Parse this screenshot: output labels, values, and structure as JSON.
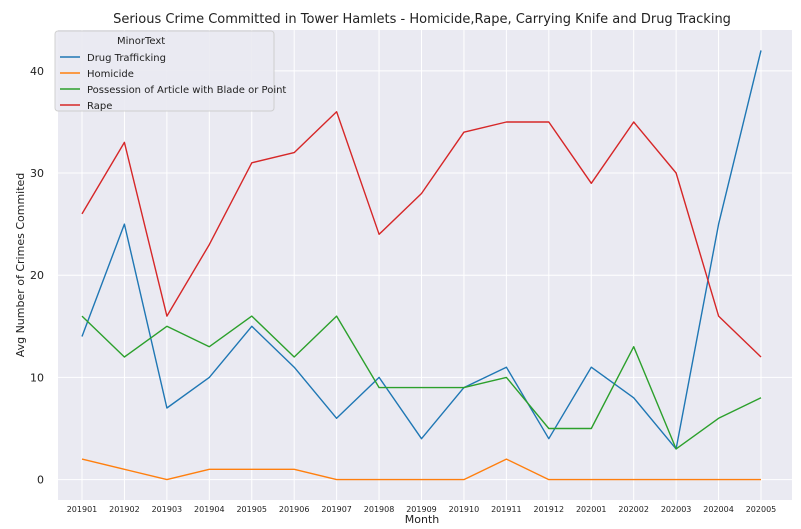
{
  "chart_data": {
    "type": "line",
    "title": "Serious Crime Committed in Tower Hamlets - Homicide,Rape, Carrying Knife and Drug Tracking",
    "xlabel": "Month",
    "ylabel": "Avg Number of Crimes Commited",
    "categories": [
      "201901",
      "201902",
      "201903",
      "201904",
      "201905",
      "201906",
      "201907",
      "201908",
      "201909",
      "201910",
      "201911",
      "201912",
      "202001",
      "202002",
      "202003",
      "202004",
      "202005"
    ],
    "ylim": [
      -2,
      44
    ],
    "yticks": [
      0,
      10,
      20,
      30,
      40
    ],
    "grid": true,
    "legend_title": "MinorText",
    "legend_position": "top-left",
    "series": [
      {
        "name": "Drug Trafficking",
        "color": "#1f77b4",
        "values": [
          14,
          25,
          7,
          10,
          15,
          11,
          6,
          10,
          4,
          9,
          11,
          4,
          11,
          8,
          3,
          25,
          42
        ]
      },
      {
        "name": "Homicide",
        "color": "#ff7f0e",
        "values": [
          2,
          1,
          0,
          1,
          1,
          1,
          0,
          0,
          0,
          0,
          2,
          0,
          0,
          0,
          0,
          0,
          0
        ]
      },
      {
        "name": "Possession of Article with Blade or Point",
        "color": "#2ca02c",
        "values": [
          16,
          12,
          15,
          13,
          16,
          12,
          16,
          9,
          9,
          9,
          10,
          5,
          5,
          13,
          3,
          6,
          8
        ]
      },
      {
        "name": "Rape",
        "color": "#d62728",
        "values": [
          26,
          33,
          16,
          23,
          31,
          32,
          36,
          24,
          28,
          34,
          35,
          35,
          29,
          35,
          30,
          16,
          12
        ]
      }
    ]
  }
}
